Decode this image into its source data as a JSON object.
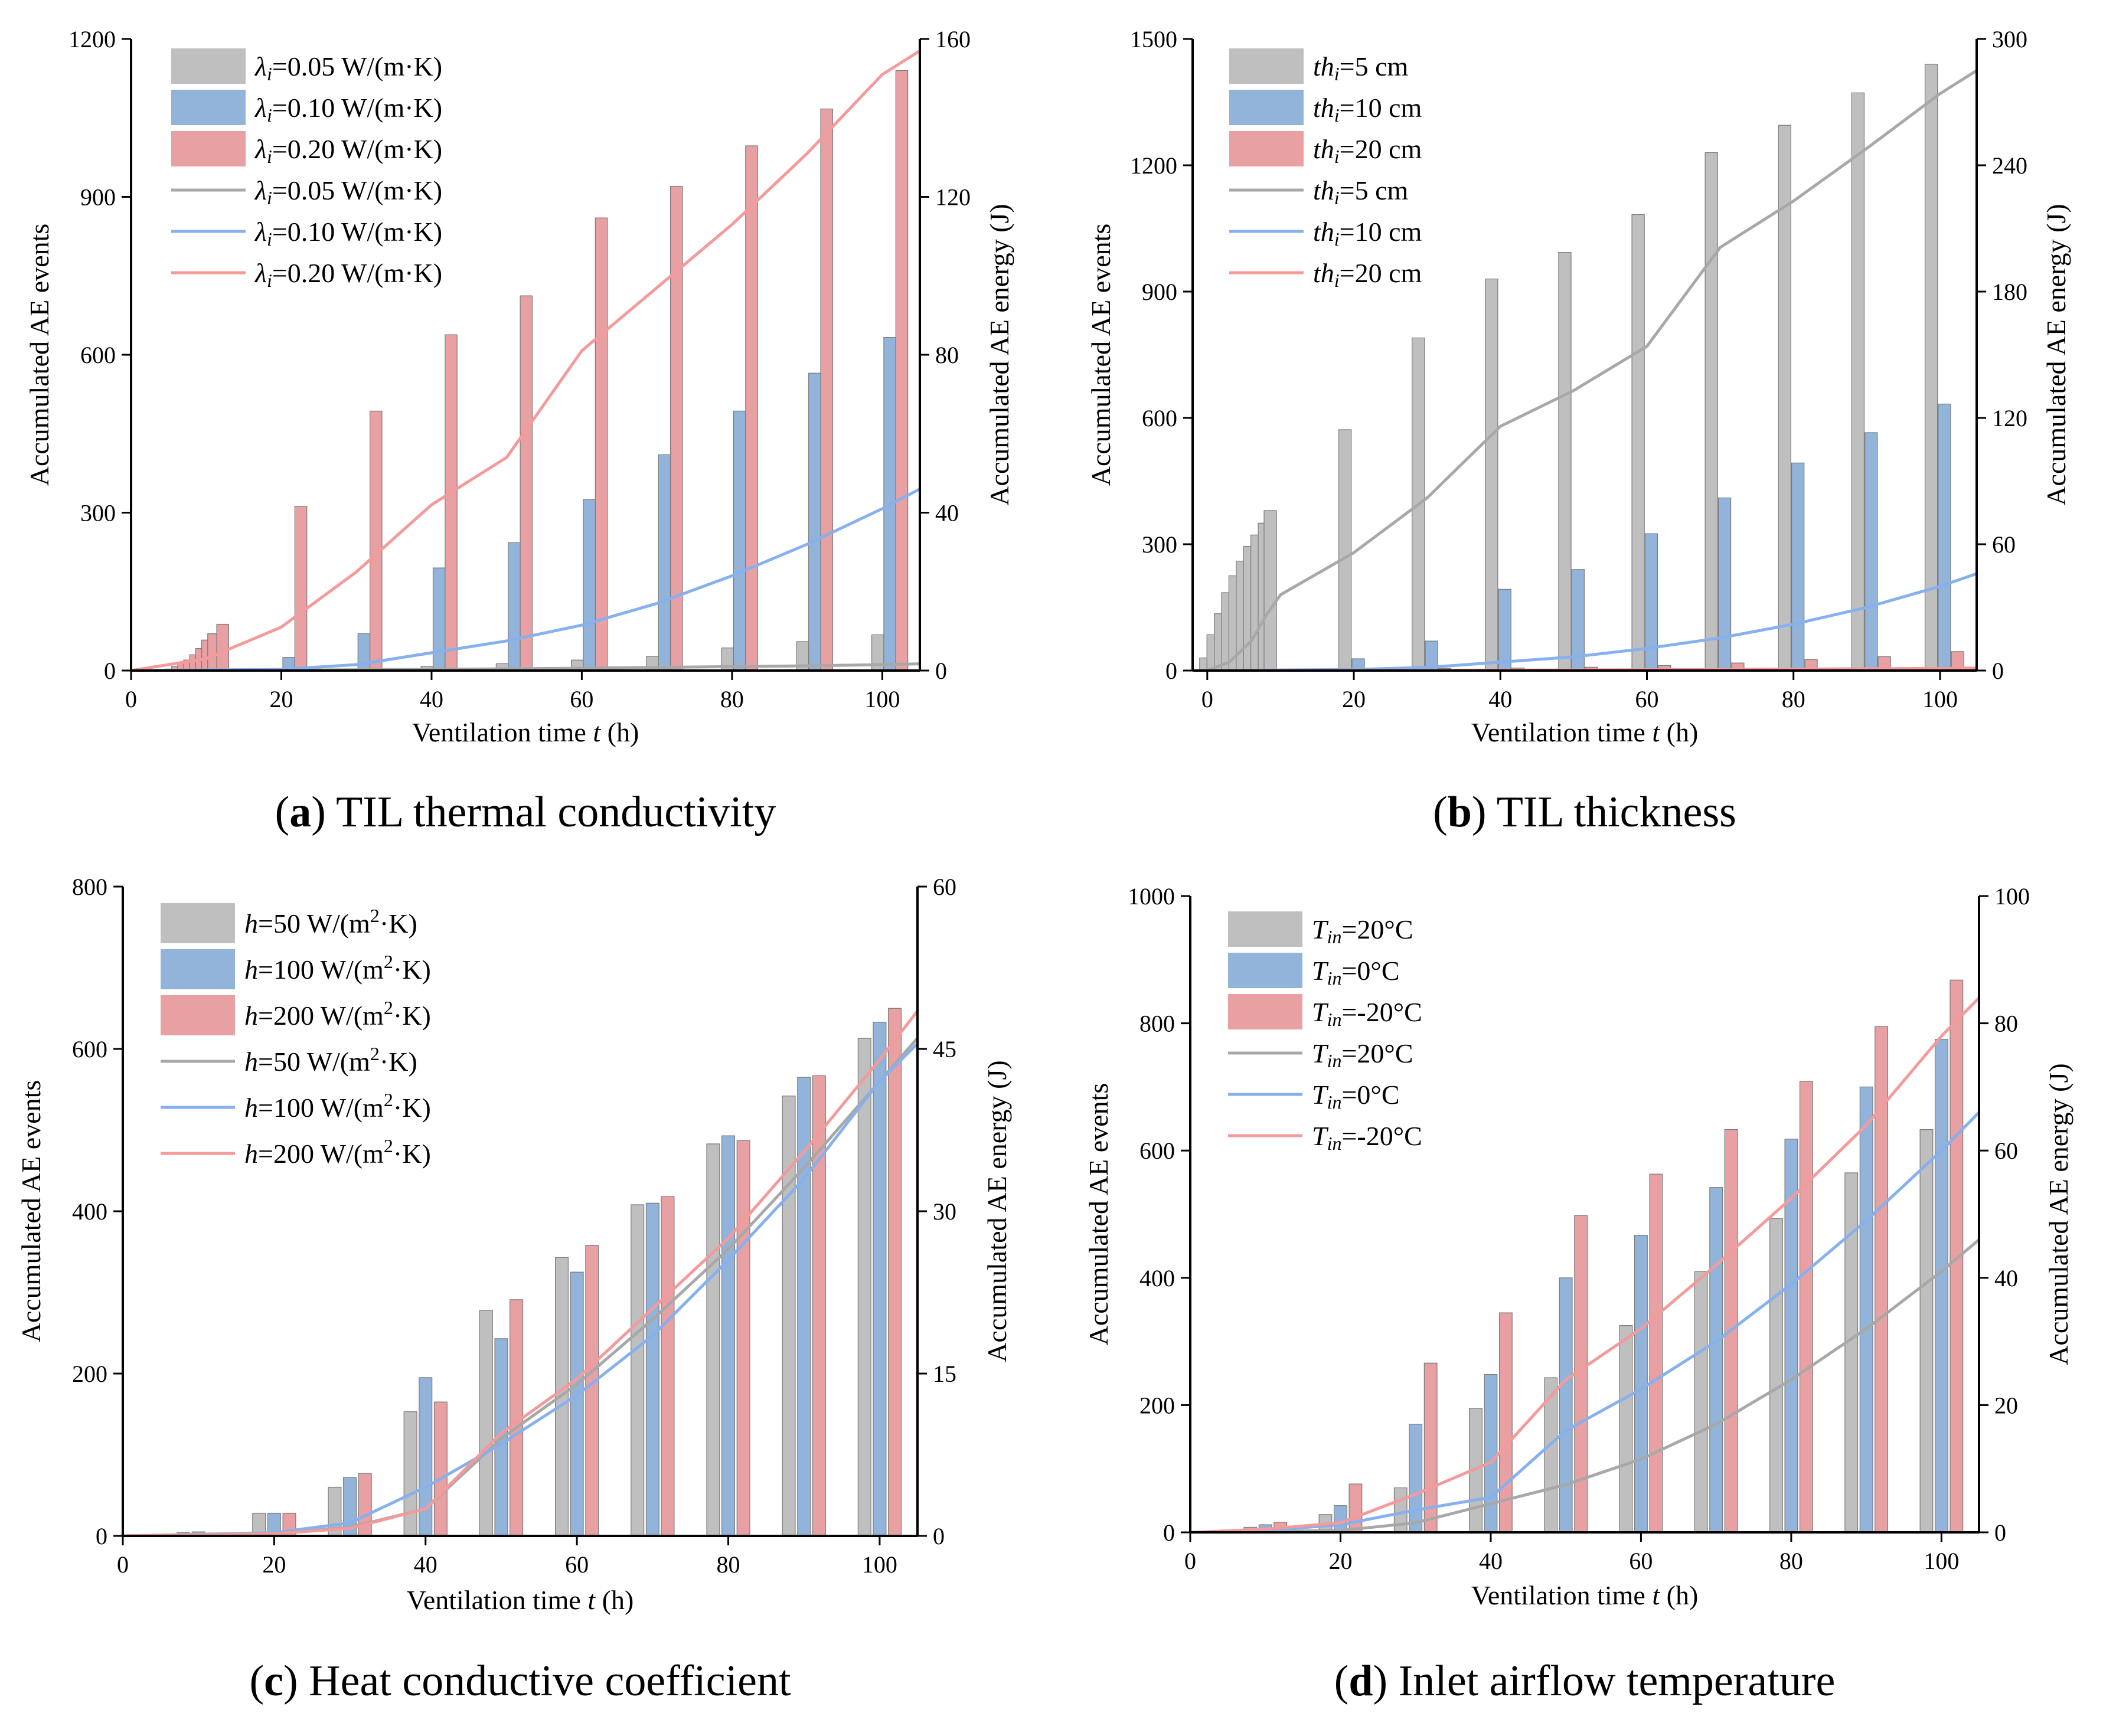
{
  "colors": {
    "gray_bar": "#bfbfbf",
    "blue_bar": "#92b4da",
    "red_bar": "#e8a0a2",
    "gray_line": "#a8a8a8",
    "blue_line": "#86b0ee",
    "red_line": "#f49a9a",
    "bar_edge": "#7a7a7a"
  },
  "chart_data": [
    {
      "id": "a",
      "type": "bar+line",
      "caption_letter": "a",
      "caption_text": "TIL thermal conductivity",
      "xlabel": {
        "main": "Ventilation time ",
        "var": "t",
        "unit": " (h)"
      },
      "ylabel": "Accumulated AE events",
      "y2label": "Accumulated AE energy (J)",
      "xlim": [
        0,
        105
      ],
      "xticks": [
        0,
        20,
        40,
        60,
        80,
        100
      ],
      "ylim": [
        0,
        1200
      ],
      "yticks": [
        0,
        300,
        600,
        900,
        1200
      ],
      "y2lim": [
        0,
        160
      ],
      "y2ticks": [
        0,
        40,
        80,
        120,
        160
      ],
      "bar_width": 1.6,
      "legend": [
        {
          "kind": "bar",
          "color": "gray",
          "sym": "λ",
          "sub": "i",
          "text": "=0.05 W/(m·K)"
        },
        {
          "kind": "bar",
          "color": "blue",
          "sym": "λ",
          "sub": "i",
          "text": "=0.10 W/(m·K)"
        },
        {
          "kind": "bar",
          "color": "red",
          "sym": "λ",
          "sub": "i",
          "text": "=0.20 W/(m·K)"
        },
        {
          "kind": "line",
          "color": "gray",
          "sym": "λ",
          "sub": "i",
          "text": "=0.05 W/(m·K)"
        },
        {
          "kind": "line",
          "color": "blue",
          "sym": "λ",
          "sub": "i",
          "text": "=0.10 W/(m·K)"
        },
        {
          "kind": "line",
          "color": "red",
          "sym": "λ",
          "sub": "i",
          "text": "=0.20 W/(m·K)"
        }
      ],
      "bar_series": [
        {
          "name": "λi=0.05 W/(m·K)",
          "color": "gray",
          "x": [
            19.4,
            29.4,
            39.4,
            49.4,
            59.4,
            69.4,
            79.4,
            89.4,
            99.4
          ],
          "values": [
            1,
            3,
            8,
            13,
            20,
            27,
            43,
            55,
            68
          ]
        },
        {
          "name": "λi=0.10 W/(m·K)",
          "color": "blue",
          "x": [
            21,
            31,
            41,
            51,
            61,
            71,
            81,
            91,
            101
          ],
          "values": [
            25,
            70,
            195,
            243,
            325,
            410,
            493,
            565,
            633
          ]
        },
        {
          "name": "λi=0.20 W/(m·K)",
          "color": "red",
          "x": [
            5.4,
            6.2,
            7,
            7.8,
            8.6,
            9.4,
            10.2,
            11,
            12.2,
            22.6,
            32.6,
            42.6,
            52.6,
            62.6,
            72.6,
            82.6,
            92.6,
            102.6
          ],
          "values": [
            3,
            8,
            14,
            20,
            30,
            42,
            58,
            70,
            88,
            312,
            493,
            638,
            712,
            860,
            920,
            997,
            1067,
            1140
          ]
        }
      ],
      "line_series": [
        {
          "name": "λi=0.05 W/(m·K)",
          "color": "gray",
          "x": [
            0,
            20,
            40,
            60,
            70,
            80,
            90,
            100,
            105
          ],
          "values": [
            0,
            0.1,
            0.3,
            0.6,
            0.8,
            1.0,
            1.2,
            1.5,
            1.7
          ]
        },
        {
          "name": "λi=0.10 W/(m·K)",
          "color": "blue",
          "x": [
            0,
            20,
            30,
            40,
            50,
            60,
            70,
            80,
            90,
            100,
            105
          ],
          "values": [
            0,
            0.3,
            1.5,
            4.5,
            7.5,
            11.5,
            17,
            24,
            32,
            41,
            46
          ]
        },
        {
          "name": "λi=0.20 W/(m·K)",
          "color": "red",
          "x": [
            0,
            10,
            20,
            30,
            40,
            50,
            60,
            70,
            80,
            90,
            100,
            105
          ],
          "values": [
            0,
            3,
            11,
            25,
            42,
            54,
            81,
            97,
            113,
            131,
            151,
            157
          ]
        }
      ]
    },
    {
      "id": "b",
      "type": "bar+line",
      "caption_letter": "b",
      "caption_text": "TIL thickness",
      "xlabel": {
        "main": "Ventilation time ",
        "var": "t",
        "unit": " (h)"
      },
      "ylabel": "Accumulated AE events",
      "y2label": "Accumulated AE energy (J)",
      "xlim": [
        -2,
        105
      ],
      "xticks": [
        0,
        20,
        40,
        60,
        80,
        100
      ],
      "ylim": [
        0,
        1500
      ],
      "yticks": [
        0,
        300,
        600,
        900,
        1200,
        1500
      ],
      "y2lim": [
        0,
        300
      ],
      "y2ticks": [
        0,
        60,
        120,
        180,
        240,
        300
      ],
      "bar_width": 1.7,
      "legend": [
        {
          "kind": "bar",
          "color": "gray",
          "sym": "th",
          "sub": "i",
          "text": "=5 cm"
        },
        {
          "kind": "bar",
          "color": "blue",
          "sym": "th",
          "sub": "i",
          "text": "=10 cm"
        },
        {
          "kind": "bar",
          "color": "red",
          "sym": "th",
          "sub": "i",
          "text": "=20 cm"
        },
        {
          "kind": "line",
          "color": "gray",
          "sym": "th",
          "sub": "i",
          "text": "=5 cm"
        },
        {
          "kind": "line",
          "color": "blue",
          "sym": "th",
          "sub": "i",
          "text": "=10 cm"
        },
        {
          "kind": "line",
          "color": "red",
          "sym": "th",
          "sub": "i",
          "text": "=20 cm"
        }
      ],
      "bar_series": [
        {
          "name": "thi=5 cm",
          "color": "gray",
          "x": [
            -0.2,
            0.8,
            1.8,
            2.8,
            3.8,
            4.8,
            5.8,
            6.8,
            7.8,
            8.6,
            18.8,
            28.8,
            38.8,
            48.8,
            58.8,
            68.8,
            78.8,
            88.8,
            98.8
          ],
          "values": [
            30,
            85,
            135,
            185,
            225,
            260,
            295,
            322,
            350,
            380,
            572,
            790,
            930,
            993,
            1083,
            1230,
            1295,
            1372,
            1440
          ]
        },
        {
          "name": "thi=10 cm",
          "color": "blue",
          "x": [
            20.6,
            30.6,
            40.6,
            50.6,
            60.6,
            70.6,
            80.6,
            90.6,
            100.6
          ],
          "values": [
            28,
            70,
            193,
            240,
            325,
            410,
            493,
            565,
            633
          ]
        },
        {
          "name": "thi=20 cm",
          "color": "red",
          "x": [
            12.4,
            22.4,
            32.4,
            42.4,
            52.4,
            62.4,
            72.4,
            82.4,
            92.4,
            102.4
          ],
          "values": [
            1,
            3,
            5,
            6,
            8,
            12,
            18,
            26,
            33,
            45
          ]
        }
      ],
      "line_series": [
        {
          "name": "thi=5 cm",
          "color": "gray",
          "x": [
            0,
            3,
            6,
            8,
            10,
            20,
            30,
            40,
            50,
            60,
            70,
            80,
            90,
            100,
            105
          ],
          "values": [
            0,
            4,
            14,
            26,
            36,
            56,
            82,
            116,
            133,
            154,
            201,
            223,
            248,
            274,
            285
          ]
        },
        {
          "name": "thi=10 cm",
          "color": "blue",
          "x": [
            0,
            20,
            30,
            40,
            50,
            60,
            70,
            80,
            90,
            100,
            105
          ],
          "values": [
            0,
            0.5,
            1.5,
            4,
            6.5,
            10.5,
            15.5,
            22,
            30,
            40,
            46
          ]
        },
        {
          "name": "thi=20 cm",
          "color": "red",
          "x": [
            0,
            20,
            40,
            60,
            80,
            100,
            105
          ],
          "values": [
            0,
            0.1,
            0.2,
            0.4,
            0.7,
            1.0,
            1.2
          ]
        }
      ]
    },
    {
      "id": "c",
      "type": "bar+line",
      "caption_letter": "c",
      "caption_text": "Heat conductive coefficient",
      "xlabel": {
        "main": "Ventilation time ",
        "var": "t",
        "unit": " (h)"
      },
      "ylabel": "Accumulated AE events",
      "y2label": "Accumulated AE energy (J)",
      "xlim": [
        0,
        105
      ],
      "xticks": [
        0,
        20,
        40,
        60,
        80,
        100
      ],
      "ylim": [
        0,
        800
      ],
      "yticks": [
        0,
        200,
        400,
        600,
        800
      ],
      "y2lim": [
        0,
        60
      ],
      "y2ticks": [
        0,
        15,
        30,
        45,
        60
      ],
      "bar_width": 1.7,
      "legend": [
        {
          "kind": "bar",
          "color": "gray",
          "sym": "h",
          "sub": "",
          "text": "=50 W/(m",
          "sup": "2",
          "tail": "·K)"
        },
        {
          "kind": "bar",
          "color": "blue",
          "sym": "h",
          "sub": "",
          "text": "=100 W/(m",
          "sup": "2",
          "tail": "·K)"
        },
        {
          "kind": "bar",
          "color": "red",
          "sym": "h",
          "sub": "",
          "text": "=200 W/(m",
          "sup": "2",
          "tail": "·K)"
        },
        {
          "kind": "line",
          "color": "gray",
          "sym": "h",
          "sub": "",
          "text": "=50 W/(m",
          "sup": "2",
          "tail": "·K)"
        },
        {
          "kind": "line",
          "color": "blue",
          "sym": "h",
          "sub": "",
          "text": "=100 W/(m",
          "sup": "2",
          "tail": "·K)"
        },
        {
          "kind": "line",
          "color": "red",
          "sym": "h",
          "sub": "",
          "text": "=200 W/(m",
          "sup": "2",
          "tail": "·K)"
        }
      ],
      "bar_series": [
        {
          "name": "h=50 W/(m2·K)",
          "color": "gray",
          "x": [
            8,
            18,
            28,
            38,
            48,
            58,
            68,
            78,
            88,
            98
          ],
          "values": [
            4,
            28,
            60,
            153,
            278,
            343,
            408,
            483,
            542,
            613
          ]
        },
        {
          "name": "h=100 W/(m2·K)",
          "color": "blue",
          "x": [
            10,
            20,
            30,
            40,
            50,
            60,
            70,
            80,
            90,
            100
          ],
          "values": [
            5,
            28,
            72,
            195,
            243,
            325,
            410,
            493,
            565,
            633
          ]
        },
        {
          "name": "h=200 W/(m2·K)",
          "color": "red",
          "x": [
            12,
            22,
            32,
            42,
            52,
            62,
            72,
            82,
            92,
            102
          ],
          "values": [
            3,
            28,
            77,
            165,
            291,
            358,
            418,
            487,
            567,
            650
          ]
        }
      ],
      "line_series": [
        {
          "name": "h=50 W/(m2·K)",
          "color": "gray",
          "x": [
            0,
            20,
            30,
            40,
            50,
            60,
            70,
            80,
            90,
            100,
            105
          ],
          "values": [
            0,
            0.2,
            0.8,
            2.5,
            9,
            14,
            20,
            26.5,
            34,
            42,
            46
          ]
        },
        {
          "name": "h=100 W/(m2·K)",
          "color": "blue",
          "x": [
            0,
            20,
            30,
            40,
            50,
            60,
            70,
            80,
            90,
            100,
            105
          ],
          "values": [
            0,
            0.3,
            1.2,
            4.5,
            8.5,
            13,
            18.5,
            25.5,
            33,
            42,
            45.5
          ]
        },
        {
          "name": "h=200 W/(m2·K)",
          "color": "red",
          "x": [
            0,
            20,
            30,
            40,
            50,
            60,
            70,
            80,
            90,
            100,
            105
          ],
          "values": [
            0,
            0.2,
            0.7,
            2.5,
            9.5,
            14.5,
            21,
            27.5,
            35.5,
            44,
            48.5
          ]
        }
      ]
    },
    {
      "id": "d",
      "type": "bar+line",
      "caption_letter": "d",
      "caption_text": "Inlet airflow temperature",
      "xlabel": {
        "main": "Ventilation time ",
        "var": "t",
        "unit": " (h)"
      },
      "ylabel": "Accumulated AE events",
      "y2label": "Accumulated AE energy (J)",
      "xlim": [
        0,
        105
      ],
      "xticks": [
        0,
        20,
        40,
        60,
        80,
        100
      ],
      "ylim": [
        0,
        1000
      ],
      "yticks": [
        0,
        200,
        400,
        600,
        800,
        1000
      ],
      "y2lim": [
        0,
        100
      ],
      "y2ticks": [
        0,
        20,
        40,
        60,
        80,
        100
      ],
      "bar_width": 1.7,
      "legend": [
        {
          "kind": "bar",
          "color": "gray",
          "sym": "T",
          "sub": "in",
          "text": "=20°C"
        },
        {
          "kind": "bar",
          "color": "blue",
          "sym": "T",
          "sub": "in",
          "text": "=0°C"
        },
        {
          "kind": "bar",
          "color": "red",
          "sym": "T",
          "sub": "in",
          "text": "=-20°C"
        },
        {
          "kind": "line",
          "color": "gray",
          "sym": "T",
          "sub": "in",
          "text": "=20°C"
        },
        {
          "kind": "line",
          "color": "blue",
          "sym": "T",
          "sub": "in",
          "text": "=0°C"
        },
        {
          "kind": "line",
          "color": "red",
          "sym": "T",
          "sub": "in",
          "text": "=-20°C"
        }
      ],
      "bar_series": [
        {
          "name": "Tin=20°C",
          "color": "gray",
          "x": [
            8,
            18,
            28,
            38,
            48,
            58,
            68,
            78,
            88,
            98
          ],
          "values": [
            8,
            28,
            70,
            195,
            243,
            325,
            410,
            493,
            565,
            633
          ]
        },
        {
          "name": "Tin=0°C",
          "color": "blue",
          "x": [
            10,
            20,
            30,
            40,
            50,
            60,
            70,
            80,
            90,
            100
          ],
          "values": [
            12,
            42,
            170,
            248,
            400,
            467,
            542,
            618,
            700,
            775
          ]
        },
        {
          "name": "Tin=-20°C",
          "color": "red",
          "x": [
            12,
            22,
            32,
            42,
            52,
            62,
            72,
            82,
            92,
            102
          ],
          "values": [
            16,
            76,
            266,
            345,
            498,
            563,
            633,
            709,
            795,
            868
          ]
        }
      ],
      "line_series": [
        {
          "name": "Tin=20°C",
          "color": "gray",
          "x": [
            0,
            20,
            30,
            40,
            50,
            60,
            70,
            80,
            90,
            100,
            105
          ],
          "values": [
            0,
            0.3,
            1.5,
            4.5,
            7.5,
            11.5,
            17,
            24,
            32,
            41,
            46
          ]
        },
        {
          "name": "Tin=0°C",
          "color": "blue",
          "x": [
            0,
            10,
            20,
            30,
            40,
            50,
            60,
            70,
            80,
            90,
            100,
            105
          ],
          "values": [
            0,
            0.3,
            1.2,
            3.5,
            5.5,
            16,
            22.5,
            30,
            39,
            49,
            60,
            66
          ]
        },
        {
          "name": "Tin=-20°C",
          "color": "red",
          "x": [
            0,
            10,
            20,
            30,
            40,
            50,
            60,
            70,
            80,
            90,
            100,
            105
          ],
          "values": [
            0,
            0.5,
            1.5,
            6,
            11,
            24,
            32,
            42,
            52.5,
            64,
            78,
            84
          ]
        }
      ]
    }
  ]
}
